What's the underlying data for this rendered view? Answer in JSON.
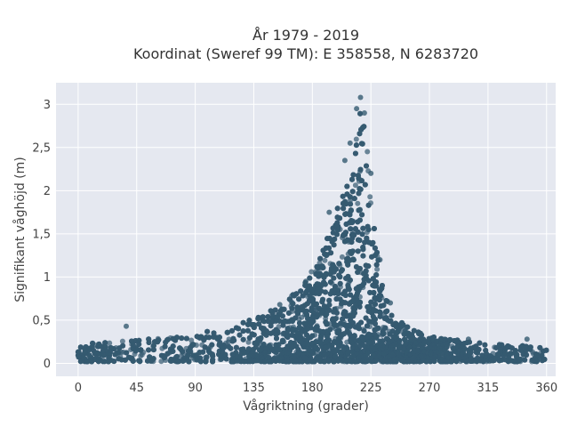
{
  "chart_data": {
    "type": "scatter",
    "title_lines": [
      "År 1979 - 2019",
      "Koordinat (Sweref 99 TM): E 358558, N 6283720"
    ],
    "xlabel": "Vågriktning (grader)",
    "ylabel": "Signifikant våghöjd (m)",
    "xlim": [
      -17,
      367
    ],
    "ylim": [
      -0.15,
      3.25
    ],
    "xticks": [
      0,
      45,
      90,
      135,
      180,
      225,
      270,
      315,
      360
    ],
    "xtick_labels": [
      "0",
      "45",
      "90",
      "135",
      "180",
      "225",
      "270",
      "315",
      "360"
    ],
    "yticks": [
      0,
      0.5,
      1,
      1.5,
      2,
      2.5,
      3
    ],
    "ytick_labels": [
      "0",
      "0,5",
      "1",
      "1,5",
      "2",
      "2,5",
      "3"
    ],
    "grid": true,
    "colors": {
      "marker": "#355a70",
      "plot_bg": "#e5e8f0",
      "grid": "#ffffff"
    },
    "envelope": {
      "x": [
        0,
        20,
        45,
        90,
        120,
        150,
        170,
        185,
        195,
        205,
        212,
        218,
        222,
        226,
        232,
        240,
        255,
        270,
        300,
        330,
        360
      ],
      "y_max": [
        0.22,
        0.25,
        0.27,
        0.35,
        0.45,
        0.62,
        0.85,
        1.2,
        1.6,
        2.1,
        2.6,
        3.05,
        2.6,
        1.9,
        1.0,
        0.6,
        0.4,
        0.32,
        0.25,
        0.22,
        0.18
      ]
    },
    "notable_points": [
      {
        "x": 37,
        "y": 0.43
      },
      {
        "x": 217,
        "y": 3.08
      },
      {
        "x": 214,
        "y": 2.95
      },
      {
        "x": 220,
        "y": 2.9
      },
      {
        "x": 209,
        "y": 2.55
      },
      {
        "x": 205,
        "y": 2.35
      },
      {
        "x": 225,
        "y": 2.2
      },
      {
        "x": 193,
        "y": 1.75
      },
      {
        "x": 232,
        "y": 1.2
      },
      {
        "x": 175,
        "y": 0.95
      },
      {
        "x": 240,
        "y": 0.7
      },
      {
        "x": 155,
        "y": 0.68
      },
      {
        "x": 345,
        "y": 0.28
      },
      {
        "x": 300,
        "y": 0.28
      }
    ]
  }
}
